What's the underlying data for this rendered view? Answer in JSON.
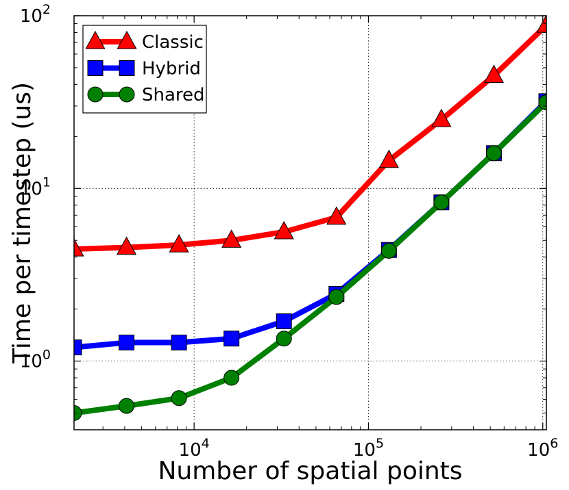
{
  "chart_data": {
    "type": "line",
    "title": "",
    "xlabel": "Number of spatial points",
    "ylabel": "Time per timestep (us)",
    "xscale": "log",
    "yscale": "log",
    "xlim": [
      2048,
      1048576
    ],
    "ylim": [
      0.4,
      100
    ],
    "grid": true,
    "legend_position": "top-left",
    "x": [
      2048,
      4096,
      8192,
      16384,
      32768,
      65536,
      131072,
      262144,
      524288,
      1048576
    ],
    "x_ticks": [
      {
        "value": 10000,
        "base": "10",
        "exp": "4"
      },
      {
        "value": 100000,
        "base": "10",
        "exp": "5"
      },
      {
        "value": 1000000,
        "base": "10",
        "exp": "6"
      }
    ],
    "y_ticks": [
      {
        "value": 1,
        "base": "10",
        "exp": "0"
      },
      {
        "value": 10,
        "base": "10",
        "exp": "1"
      },
      {
        "value": 100,
        "base": "10",
        "exp": "2"
      }
    ],
    "series": [
      {
        "name": "Classic",
        "color": "#ff0000",
        "marker": "triangle",
        "values": [
          4.45,
          4.55,
          4.7,
          5.0,
          5.6,
          6.8,
          14.5,
          25,
          45,
          88
        ]
      },
      {
        "name": "Hybrid",
        "color": "#0000ff",
        "marker": "square",
        "values": [
          1.2,
          1.28,
          1.28,
          1.35,
          1.7,
          2.45,
          4.4,
          8.3,
          16.0,
          32.0
        ]
      },
      {
        "name": "Shared",
        "color": "#008000",
        "marker": "circle",
        "values": [
          0.5,
          0.55,
          0.61,
          0.8,
          1.35,
          2.35,
          4.35,
          8.3,
          16.0,
          31.5
        ]
      }
    ]
  }
}
